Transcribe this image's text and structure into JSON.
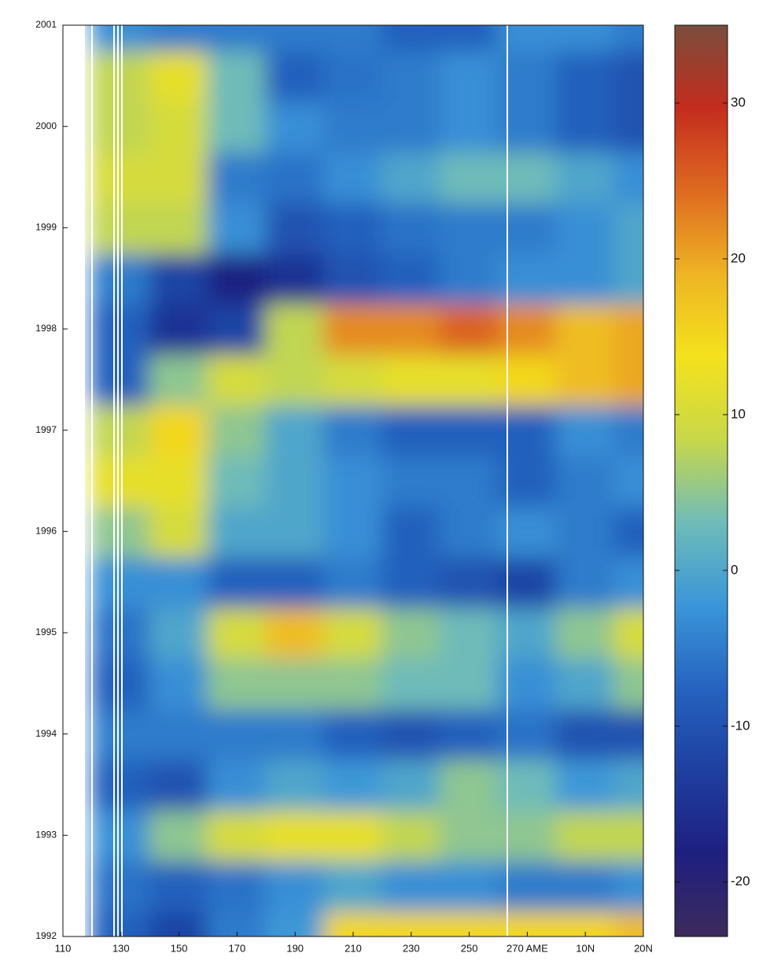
{
  "chart_data": {
    "type": "heatmap",
    "categories": [
      "110",
      "130",
      "150",
      "170",
      "190",
      "210",
      "230",
      "250",
      "270 AME",
      "10N",
      "20N"
    ],
    "y": [
      1992,
      1992.5,
      1993,
      1993.5,
      1994,
      1994.5,
      1995,
      1995.5,
      1996,
      1996.5,
      1997,
      1997.5,
      1998,
      1998.5,
      1999,
      1999.5,
      2000,
      2000.5,
      2001
    ],
    "z": [
      [
        null,
        -8,
        -12,
        -5,
        -2,
        15,
        15,
        15,
        15,
        15,
        18
      ],
      [
        null,
        -6,
        -8,
        -6,
        -3,
        0,
        -3,
        -3,
        -5,
        -5,
        -3
      ],
      [
        null,
        -3,
        5,
        10,
        12,
        12,
        8,
        5,
        5,
        8,
        8
      ],
      [
        null,
        -8,
        -10,
        -3,
        0,
        -2,
        0,
        5,
        3,
        -2,
        0
      ],
      [
        null,
        -5,
        -5,
        -5,
        -5,
        -8,
        -10,
        -8,
        -6,
        -10,
        -10
      ],
      [
        null,
        -8,
        -3,
        5,
        5,
        5,
        3,
        3,
        -3,
        0,
        5
      ],
      [
        null,
        -6,
        0,
        10,
        18,
        10,
        5,
        3,
        0,
        5,
        10
      ],
      [
        null,
        -3,
        -3,
        -8,
        -8,
        -5,
        -8,
        -10,
        -12,
        -5,
        -3
      ],
      [
        null,
        5,
        10,
        0,
        0,
        -3,
        -8,
        -5,
        -3,
        -5,
        -8
      ],
      [
        null,
        12,
        12,
        3,
        0,
        -3,
        -5,
        -5,
        -8,
        -5,
        -3
      ],
      [
        null,
        8,
        15,
        5,
        0,
        -5,
        -8,
        -8,
        -8,
        -3,
        -5
      ],
      [
        null,
        -8,
        5,
        10,
        8,
        10,
        12,
        12,
        15,
        18,
        20
      ],
      [
        null,
        -8,
        -15,
        -12,
        8,
        22,
        22,
        25,
        22,
        18,
        20
      ],
      [
        null,
        -5,
        -12,
        -18,
        -15,
        -10,
        -8,
        -5,
        -3,
        -3,
        0
      ],
      [
        null,
        8,
        8,
        -3,
        -10,
        -8,
        -6,
        -5,
        -5,
        -3,
        0
      ],
      [
        null,
        10,
        10,
        -5,
        -6,
        -3,
        0,
        3,
        3,
        0,
        -3
      ],
      [
        null,
        8,
        10,
        3,
        -3,
        -5,
        -5,
        -3,
        -5,
        -8,
        -10
      ],
      [
        null,
        8,
        12,
        3,
        -8,
        -6,
        -5,
        -3,
        -5,
        -8,
        -10
      ],
      [
        null,
        -3,
        -5,
        -5,
        -5,
        -5,
        -8,
        -8,
        -3,
        -3,
        -5
      ]
    ],
    "ylim": [
      1992,
      2001
    ],
    "yticks": [
      1992,
      1993,
      1994,
      1995,
      1996,
      1997,
      1998,
      1999,
      2000,
      2001
    ],
    "clim": [
      -23.5,
      35
    ],
    "cticks": [
      -20,
      -10,
      0,
      10,
      20,
      30
    ],
    "colormap": [
      "#3d2b5c",
      "#1e1f80",
      "#1e3fa0",
      "#2563c0",
      "#3a96d8",
      "#6fbcb8",
      "#c8d84a",
      "#f4e21c",
      "#eeb424",
      "#de6a20",
      "#c42c1e",
      "#7a4e3c"
    ]
  }
}
